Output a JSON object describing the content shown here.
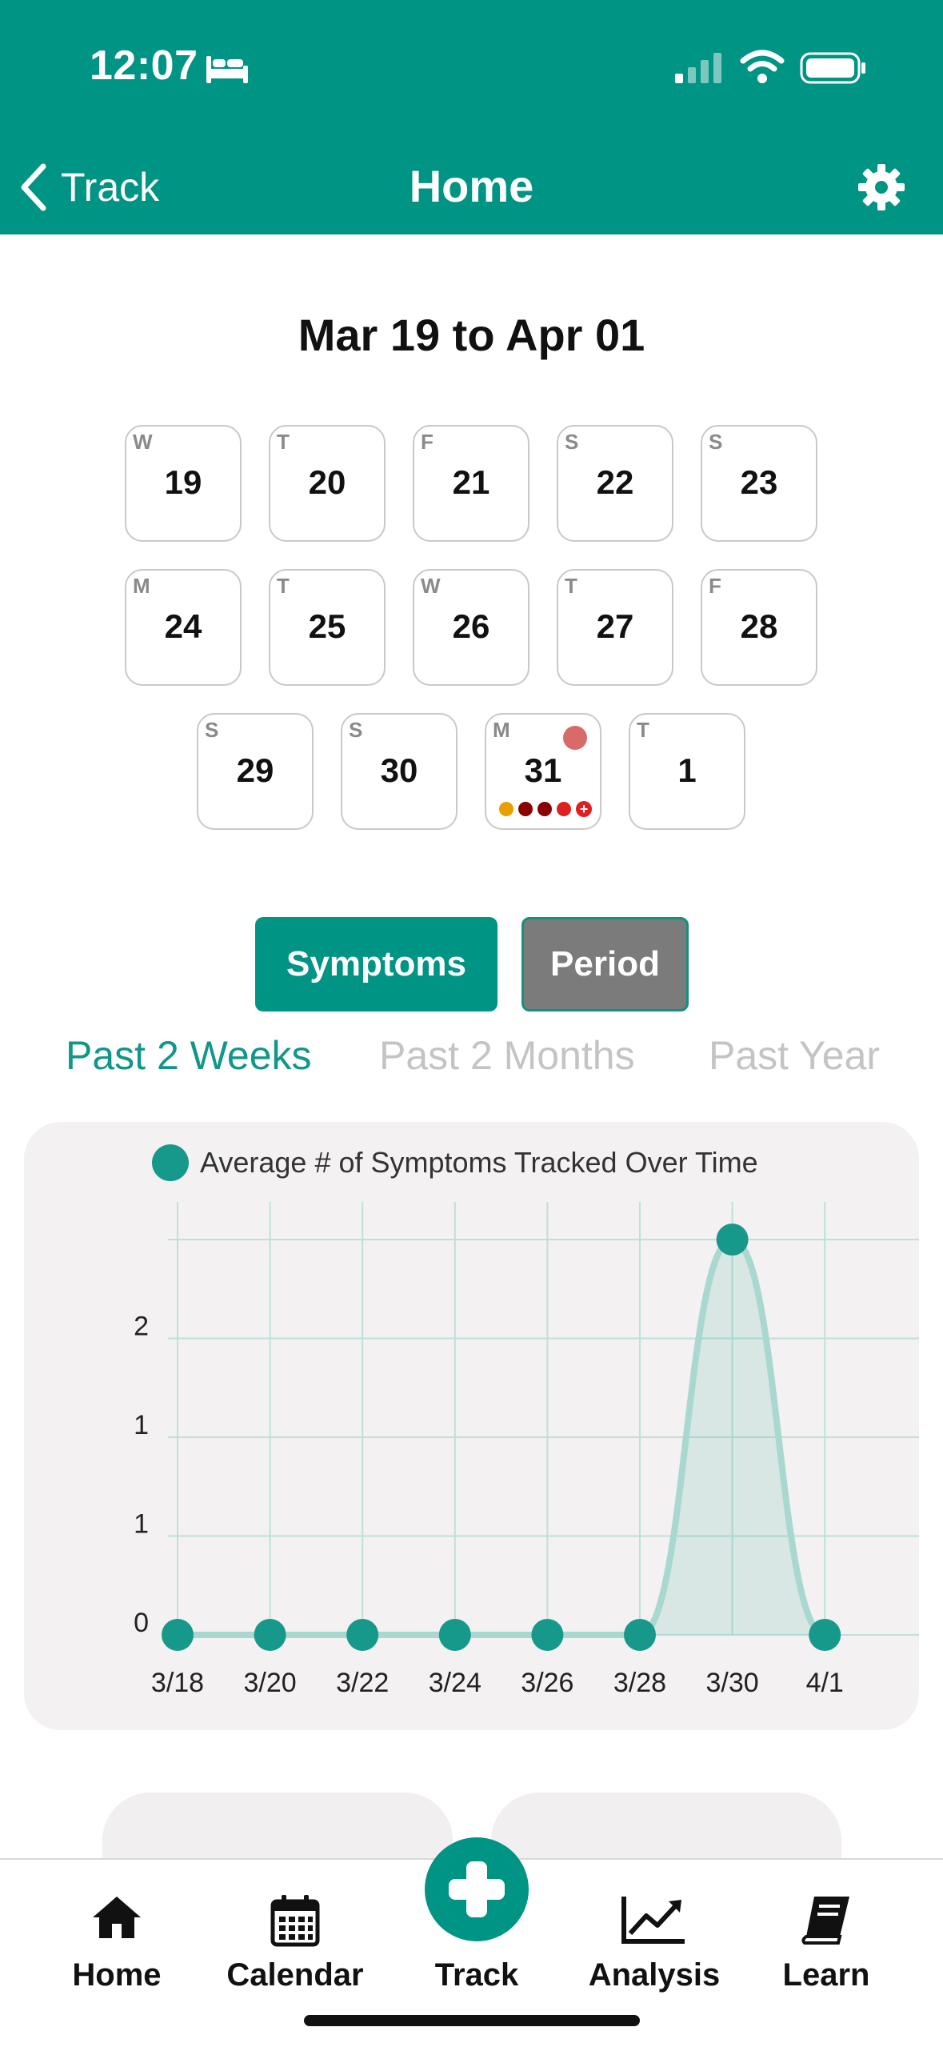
{
  "status_bar": {
    "time": "12:07"
  },
  "nav": {
    "back_label": "Track",
    "title": "Home"
  },
  "date_range": "Mar 19 to Apr 01",
  "days": [
    {
      "weekday": "W",
      "day": "19"
    },
    {
      "weekday": "T",
      "day": "20"
    },
    {
      "weekday": "F",
      "day": "21"
    },
    {
      "weekday": "S",
      "day": "22"
    },
    {
      "weekday": "S",
      "day": "23"
    },
    {
      "weekday": "M",
      "day": "24"
    },
    {
      "weekday": "T",
      "day": "25"
    },
    {
      "weekday": "W",
      "day": "26"
    },
    {
      "weekday": "T",
      "day": "27"
    },
    {
      "weekday": "F",
      "day": "28"
    },
    {
      "weekday": "S",
      "day": "29"
    },
    {
      "weekday": "S",
      "day": "30"
    },
    {
      "weekday": "M",
      "day": "31"
    },
    {
      "weekday": "T",
      "day": "1"
    }
  ],
  "day31_marker_colors": [
    "#e8a000",
    "#8b0000",
    "#8b0000",
    "#e02020"
  ],
  "toggle": {
    "symptoms": "Symptoms",
    "period": "Period"
  },
  "period_tabs": {
    "two_weeks": "Past 2 Weeks",
    "two_months": "Past 2 Months",
    "year": "Past Year"
  },
  "colors": {
    "brand": "#009485",
    "tab_active": "#109789",
    "tab_inactive": "#c4c4c4"
  },
  "chart_data": {
    "type": "area",
    "title": "Average # of Symptoms Tracked Over Time",
    "x": [
      "3/18",
      "3/20",
      "3/22",
      "3/24",
      "3/26",
      "3/28",
      "3/30",
      "4/1"
    ],
    "values": [
      0,
      0,
      0,
      0,
      0,
      0,
      2,
      0
    ],
    "y_tick_labels": [
      "0",
      "1",
      "1",
      "2"
    ],
    "ylim": [
      0,
      2
    ],
    "grid": true
  },
  "tabbar": {
    "home": "Home",
    "calendar": "Calendar",
    "track": "Track",
    "analysis": "Analysis",
    "learn": "Learn"
  }
}
